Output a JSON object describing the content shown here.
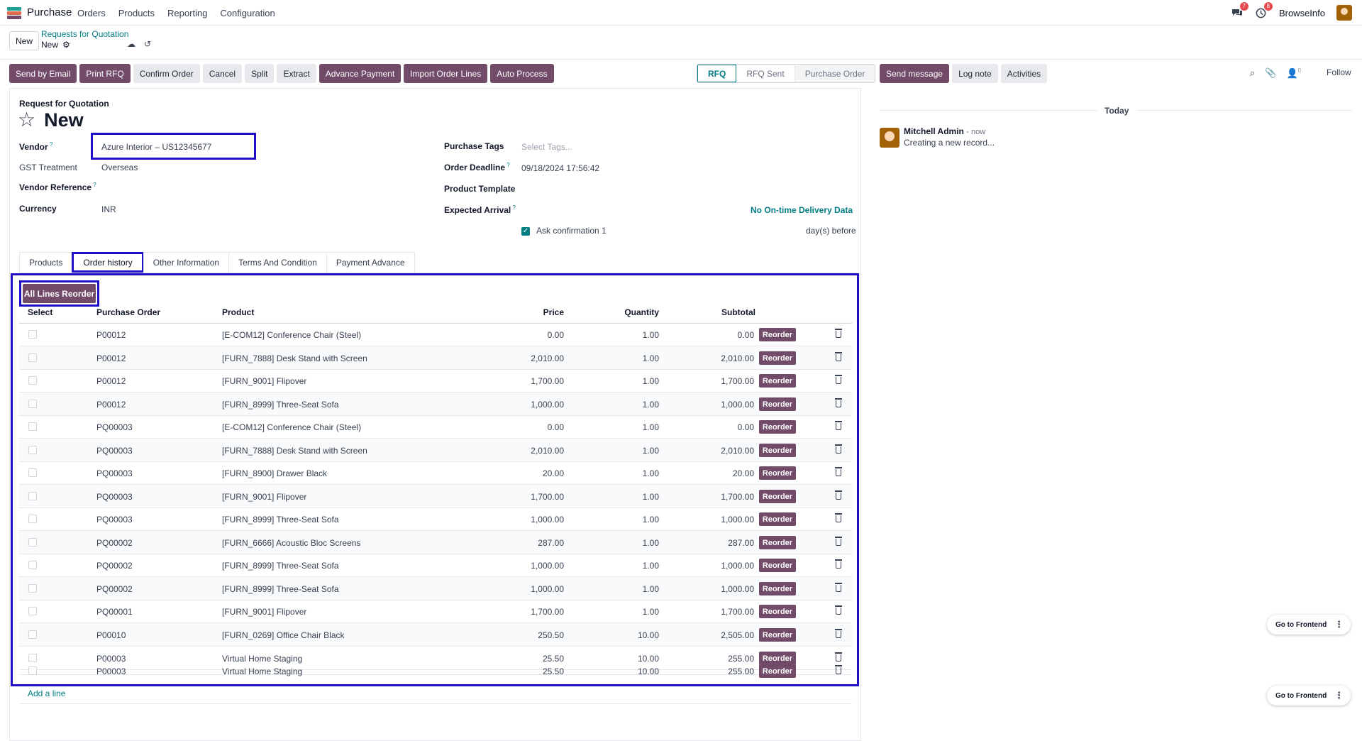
{
  "navbar": {
    "app_name": "Purchase",
    "menu": [
      "Orders",
      "Products",
      "Reporting",
      "Configuration"
    ],
    "chat_badge": "7",
    "activity_badge": "8",
    "company": "BrowseInfo"
  },
  "control_panel": {
    "new_label": "New",
    "breadcrumb": "Requests for Quotation",
    "current": "New"
  },
  "actions": {
    "primary": [
      "Send by Email",
      "Print RFQ"
    ],
    "secondary": [
      "Confirm Order",
      "Cancel",
      "Split",
      "Extract"
    ],
    "primary2": [
      "Advance Payment",
      "Import Order Lines",
      "Auto Process"
    ]
  },
  "status": {
    "stages": [
      "RFQ",
      "RFQ Sent",
      "Purchase Order"
    ],
    "active": "RFQ"
  },
  "form": {
    "doc_type": "Request for Quotation",
    "name": "New",
    "vendor_label": "Vendor",
    "vendor_value": "Azure Interior – US12345677",
    "gst_label": "GST Treatment",
    "gst_value": "Overseas",
    "vendor_ref_label": "Vendor Reference",
    "currency_label": "Currency",
    "currency_value": "INR",
    "tags_label": "Purchase Tags",
    "tags_placeholder": "Select Tags...",
    "deadline_label": "Order Deadline",
    "deadline_value": "09/18/2024 17:56:42",
    "template_label": "Product Template",
    "arrival_label": "Expected Arrival",
    "ontime_link": "No On-time Delivery Data",
    "ask_confirm_label": "Ask confirmation",
    "ask_confirm_value": "1",
    "days_before": "day(s) before"
  },
  "tabs": [
    "Products",
    "Order history",
    "Other Information",
    "Terms And Condition",
    "Payment Advance"
  ],
  "active_tab": "Order history",
  "order_history": {
    "all_reorder_label": "All Lines Reorder",
    "columns": [
      "Select",
      "Purchase Order",
      "Product",
      "Price",
      "Quantity",
      "Subtotal"
    ],
    "reorder_label": "Reorder",
    "rows": [
      {
        "po": "P00012",
        "product": "[E-COM12] Conference Chair (Steel)",
        "price": "0.00",
        "qty": "1.00",
        "subtotal": "0.00"
      },
      {
        "po": "P00012",
        "product": "[FURN_7888] Desk Stand with Screen",
        "price": "2,010.00",
        "qty": "1.00",
        "subtotal": "2,010.00"
      },
      {
        "po": "P00012",
        "product": "[FURN_9001] Flipover",
        "price": "1,700.00",
        "qty": "1.00",
        "subtotal": "1,700.00"
      },
      {
        "po": "P00012",
        "product": "[FURN_8999] Three-Seat Sofa",
        "price": "1,000.00",
        "qty": "1.00",
        "subtotal": "1,000.00"
      },
      {
        "po": "PQ00003",
        "product": "[E-COM12] Conference Chair (Steel)",
        "price": "0.00",
        "qty": "1.00",
        "subtotal": "0.00"
      },
      {
        "po": "PQ00003",
        "product": "[FURN_7888] Desk Stand with Screen",
        "price": "2,010.00",
        "qty": "1.00",
        "subtotal": "2,010.00"
      },
      {
        "po": "PQ00003",
        "product": "[FURN_8900] Drawer Black",
        "price": "20.00",
        "qty": "1.00",
        "subtotal": "20.00"
      },
      {
        "po": "PQ00003",
        "product": "[FURN_9001] Flipover",
        "price": "1,700.00",
        "qty": "1.00",
        "subtotal": "1,700.00"
      },
      {
        "po": "PQ00003",
        "product": "[FURN_8999] Three-Seat Sofa",
        "price": "1,000.00",
        "qty": "1.00",
        "subtotal": "1,000.00"
      },
      {
        "po": "PQ00002",
        "product": "[FURN_6666] Acoustic Bloc Screens",
        "price": "287.00",
        "qty": "1.00",
        "subtotal": "287.00"
      },
      {
        "po": "PQ00002",
        "product": "[FURN_8999] Three-Seat Sofa",
        "price": "1,000.00",
        "qty": "1.00",
        "subtotal": "1,000.00"
      },
      {
        "po": "PQ00002",
        "product": "[FURN_8999] Three-Seat Sofa",
        "price": "1,000.00",
        "qty": "1.00",
        "subtotal": "1,000.00"
      },
      {
        "po": "PQ00001",
        "product": "[FURN_9001] Flipover",
        "price": "1,700.00",
        "qty": "1.00",
        "subtotal": "1,700.00"
      },
      {
        "po": "P00010",
        "product": "[FURN_0269] Office Chair Black",
        "price": "250.50",
        "qty": "10.00",
        "subtotal": "2,505.00"
      },
      {
        "po": "P00003",
        "product": "Virtual Home Staging",
        "price": "25.50",
        "qty": "10.00",
        "subtotal": "255.00"
      },
      {
        "po": "P00003",
        "product": "Virtual Home Staging",
        "price": "25.50",
        "qty": "10.00",
        "subtotal": "255.00"
      }
    ],
    "add_line": "Add a line"
  },
  "chatter": {
    "send_message": "Send message",
    "log_note": "Log note",
    "activities": "Activities",
    "followers_count": "0",
    "follow": "Follow",
    "today": "Today",
    "author": "Mitchell Admin",
    "time": "- now",
    "message": "Creating a new record..."
  },
  "floating": {
    "go_frontend": "Go to Frontend"
  },
  "colors": {
    "primary": "#714b67",
    "accent": "#017e84",
    "highlight": "#1e0ec4"
  }
}
